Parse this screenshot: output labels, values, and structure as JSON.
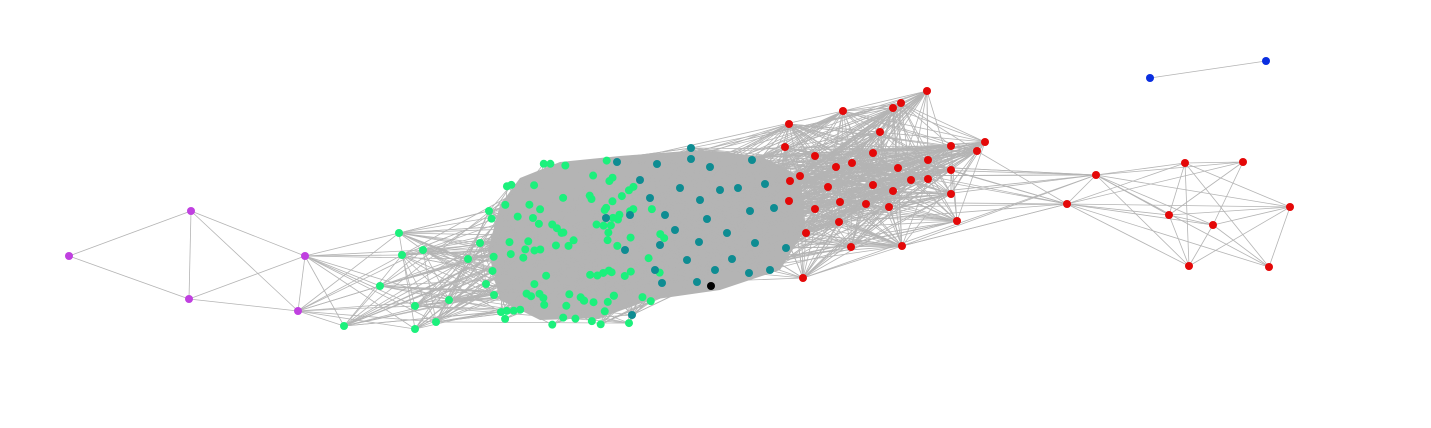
{
  "graph": {
    "edge_color": "#b4b4b4",
    "clusters": [
      {
        "name": "purple",
        "color": "#c040e0"
      },
      {
        "name": "green",
        "color": "#1cf07c"
      },
      {
        "name": "teal",
        "color": "#0e8c92"
      },
      {
        "name": "red",
        "color": "#e40808"
      },
      {
        "name": "blue",
        "color": "#0a2ee0"
      },
      {
        "name": "black",
        "color": "#000000"
      }
    ]
  }
}
